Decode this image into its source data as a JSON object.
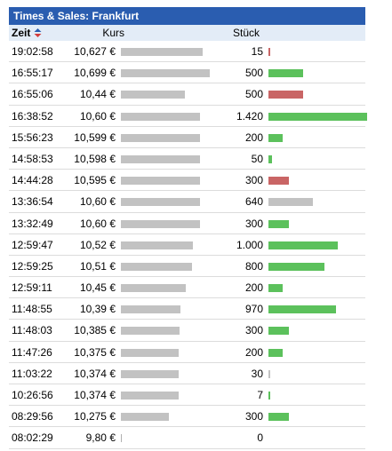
{
  "title": "Times & Sales: Frankfurt",
  "columns": {
    "time": "Zeit",
    "price": "Kurs",
    "qty": "Stück"
  },
  "colors": {
    "header_bg": "#2a5db0",
    "subheader_bg": "#e3ecf7",
    "price_bar": "#c2c2c2",
    "up": "#5cc15c",
    "down": "#c96565",
    "neutral": "#c2c2c2"
  },
  "max_qty": 1420,
  "price_range": [
    9.8,
    10.699
  ],
  "rows": [
    {
      "time": "19:02:58",
      "price": "10,627 €",
      "price_value": 10.627,
      "qty": "15",
      "qty_value": 15,
      "dir": "down"
    },
    {
      "time": "16:55:17",
      "price": "10,699 €",
      "price_value": 10.699,
      "qty": "500",
      "qty_value": 500,
      "dir": "up"
    },
    {
      "time": "16:55:06",
      "price": "10,44 €",
      "price_value": 10.44,
      "qty": "500",
      "qty_value": 500,
      "dir": "down"
    },
    {
      "time": "16:38:52",
      "price": "10,60 €",
      "price_value": 10.6,
      "qty": "1.420",
      "qty_value": 1420,
      "dir": "up"
    },
    {
      "time": "15:56:23",
      "price": "10,599 €",
      "price_value": 10.599,
      "qty": "200",
      "qty_value": 200,
      "dir": "up"
    },
    {
      "time": "14:58:53",
      "price": "10,598 €",
      "price_value": 10.598,
      "qty": "50",
      "qty_value": 50,
      "dir": "up"
    },
    {
      "time": "14:44:28",
      "price": "10,595 €",
      "price_value": 10.595,
      "qty": "300",
      "qty_value": 300,
      "dir": "down"
    },
    {
      "time": "13:36:54",
      "price": "10,60 €",
      "price_value": 10.6,
      "qty": "640",
      "qty_value": 640,
      "dir": "neutral"
    },
    {
      "time": "13:32:49",
      "price": "10,60 €",
      "price_value": 10.6,
      "qty": "300",
      "qty_value": 300,
      "dir": "up"
    },
    {
      "time": "12:59:47",
      "price": "10,52 €",
      "price_value": 10.52,
      "qty": "1.000",
      "qty_value": 1000,
      "dir": "up"
    },
    {
      "time": "12:59:25",
      "price": "10,51 €",
      "price_value": 10.51,
      "qty": "800",
      "qty_value": 800,
      "dir": "up"
    },
    {
      "time": "12:59:11",
      "price": "10,45 €",
      "price_value": 10.45,
      "qty": "200",
      "qty_value": 200,
      "dir": "up"
    },
    {
      "time": "11:48:55",
      "price": "10,39 €",
      "price_value": 10.39,
      "qty": "970",
      "qty_value": 970,
      "dir": "up"
    },
    {
      "time": "11:48:03",
      "price": "10,385 €",
      "price_value": 10.385,
      "qty": "300",
      "qty_value": 300,
      "dir": "up"
    },
    {
      "time": "11:47:26",
      "price": "10,375 €",
      "price_value": 10.375,
      "qty": "200",
      "qty_value": 200,
      "dir": "up"
    },
    {
      "time": "11:03:22",
      "price": "10,374 €",
      "price_value": 10.374,
      "qty": "30",
      "qty_value": 30,
      "dir": "neutral"
    },
    {
      "time": "10:26:56",
      "price": "10,374 €",
      "price_value": 10.374,
      "qty": "7",
      "qty_value": 7,
      "dir": "up"
    },
    {
      "time": "08:29:56",
      "price": "10,275 €",
      "price_value": 10.275,
      "qty": "300",
      "qty_value": 300,
      "dir": "up"
    },
    {
      "time": "08:02:29",
      "price": "9,80 €",
      "price_value": 9.8,
      "qty": "0",
      "qty_value": 0,
      "dir": "up"
    }
  ]
}
